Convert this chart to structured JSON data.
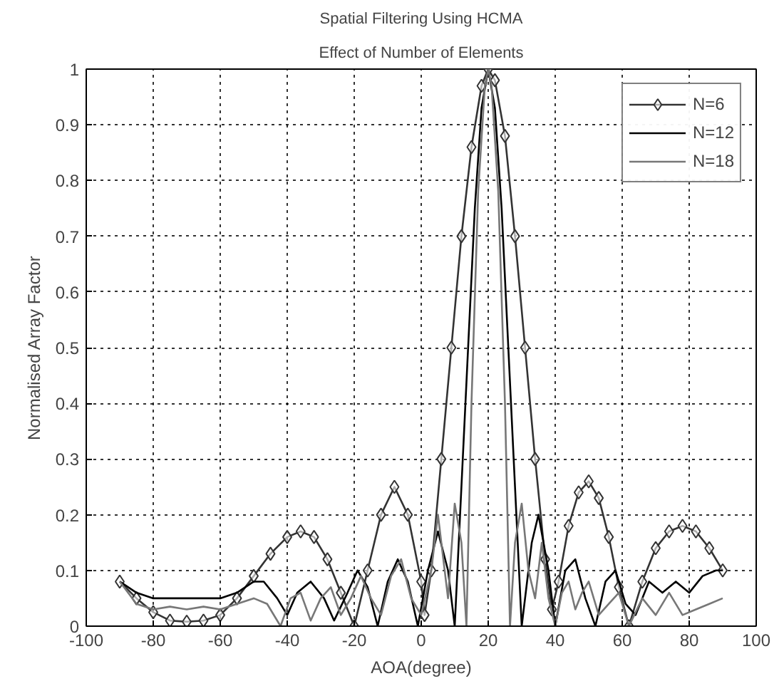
{
  "chart_data": {
    "type": "line",
    "title": "Spatial Filtering Using HCMA",
    "subtitle": "Effect of Number of Elements",
    "xlabel": "AOA(degree)",
    "ylabel": "Normalised Array Factor",
    "xlim": [
      -100,
      100
    ],
    "xticks": [
      -100,
      -80,
      -60,
      -40,
      -20,
      0,
      20,
      40,
      60,
      80,
      100
    ],
    "ylim": [
      0,
      1
    ],
    "yticks": [
      0,
      0.1,
      0.2,
      0.3,
      0.4,
      0.5,
      0.6,
      0.7,
      0.8,
      0.9,
      1
    ],
    "grid": true,
    "legend": "top right",
    "series": [
      {
        "name": "N=6",
        "color": "#333333",
        "marker": "diamond",
        "x": [
          -90,
          -85,
          -80,
          -75,
          -70,
          -65,
          -60,
          -55,
          -50,
          -45,
          -40,
          -36,
          -32,
          -28,
          -24,
          -20,
          -16,
          -12,
          -8,
          -4,
          0,
          1,
          3,
          6,
          9,
          12,
          15,
          18,
          20,
          22,
          25,
          28,
          31,
          34,
          37,
          39,
          41,
          44,
          47,
          50,
          53,
          56,
          59,
          62,
          66,
          70,
          74,
          78,
          82,
          86,
          90
        ],
        "values": [
          0.08,
          0.05,
          0.025,
          0.01,
          0.008,
          0.01,
          0.02,
          0.05,
          0.09,
          0.13,
          0.16,
          0.17,
          0.16,
          0.12,
          0.06,
          0.0,
          0.1,
          0.2,
          0.25,
          0.2,
          0.08,
          0.02,
          0.1,
          0.3,
          0.5,
          0.7,
          0.86,
          0.97,
          1.0,
          0.98,
          0.88,
          0.7,
          0.5,
          0.3,
          0.12,
          0.03,
          0.08,
          0.18,
          0.24,
          0.26,
          0.23,
          0.16,
          0.07,
          0.0,
          0.08,
          0.14,
          0.17,
          0.18,
          0.17,
          0.14,
          0.1
        ]
      },
      {
        "name": "N=12",
        "color": "#000000",
        "marker": "none",
        "x": [
          -90,
          -85,
          -80,
          -75,
          -70,
          -65,
          -60,
          -55,
          -50,
          -47,
          -43,
          -40,
          -37,
          -33,
          -29,
          -26,
          -22,
          -19,
          -16,
          -13,
          -10,
          -7,
          -4,
          -1,
          2,
          5,
          8,
          10,
          12,
          14,
          16,
          18,
          20,
          22,
          24,
          26,
          28,
          30,
          33,
          35,
          38,
          40,
          43,
          46,
          49,
          52,
          55,
          58,
          61,
          64,
          68,
          72,
          76,
          80,
          84,
          88,
          90
        ],
        "values": [
          0.08,
          0.06,
          0.05,
          0.05,
          0.05,
          0.05,
          0.05,
          0.06,
          0.08,
          0.08,
          0.05,
          0.02,
          0.06,
          0.08,
          0.05,
          0.01,
          0.06,
          0.1,
          0.07,
          0.0,
          0.08,
          0.12,
          0.08,
          0.0,
          0.1,
          0.17,
          0.1,
          0.0,
          0.25,
          0.5,
          0.75,
          0.93,
          1.0,
          0.93,
          0.75,
          0.5,
          0.25,
          0.0,
          0.15,
          0.2,
          0.1,
          0.0,
          0.1,
          0.12,
          0.05,
          0.0,
          0.08,
          0.1,
          0.04,
          0.02,
          0.08,
          0.06,
          0.08,
          0.06,
          0.09,
          0.1,
          0.1
        ]
      },
      {
        "name": "N=18",
        "color": "#777777",
        "marker": "none",
        "x": [
          -90,
          -85,
          -80,
          -75,
          -70,
          -65,
          -60,
          -55,
          -50,
          -46,
          -42,
          -39,
          -36,
          -33,
          -30,
          -27,
          -24,
          -21,
          -18,
          -15,
          -12,
          -9,
          -6,
          -3,
          0,
          3,
          5,
          8,
          10,
          12,
          13.5,
          15,
          17,
          19,
          20,
          21,
          23,
          25,
          26.5,
          28,
          30,
          32,
          34,
          36,
          38,
          40,
          42,
          44,
          46,
          48,
          50,
          53,
          56,
          59,
          62,
          66,
          70,
          74,
          78,
          82,
          86,
          90
        ],
        "values": [
          0.08,
          0.04,
          0.03,
          0.035,
          0.03,
          0.035,
          0.03,
          0.04,
          0.05,
          0.04,
          0.0,
          0.05,
          0.06,
          0.01,
          0.05,
          0.07,
          0.02,
          0.05,
          0.09,
          0.05,
          0.02,
          0.09,
          0.12,
          0.05,
          0.02,
          0.1,
          0.2,
          0.05,
          0.22,
          0.15,
          0.0,
          0.4,
          0.78,
          0.97,
          1.0,
          0.97,
          0.78,
          0.4,
          0.0,
          0.15,
          0.22,
          0.1,
          0.05,
          0.15,
          0.05,
          0.0,
          0.06,
          0.08,
          0.03,
          0.06,
          0.08,
          0.02,
          0.04,
          0.06,
          0.0,
          0.05,
          0.02,
          0.06,
          0.02,
          0.03,
          0.04,
          0.05
        ]
      }
    ]
  }
}
